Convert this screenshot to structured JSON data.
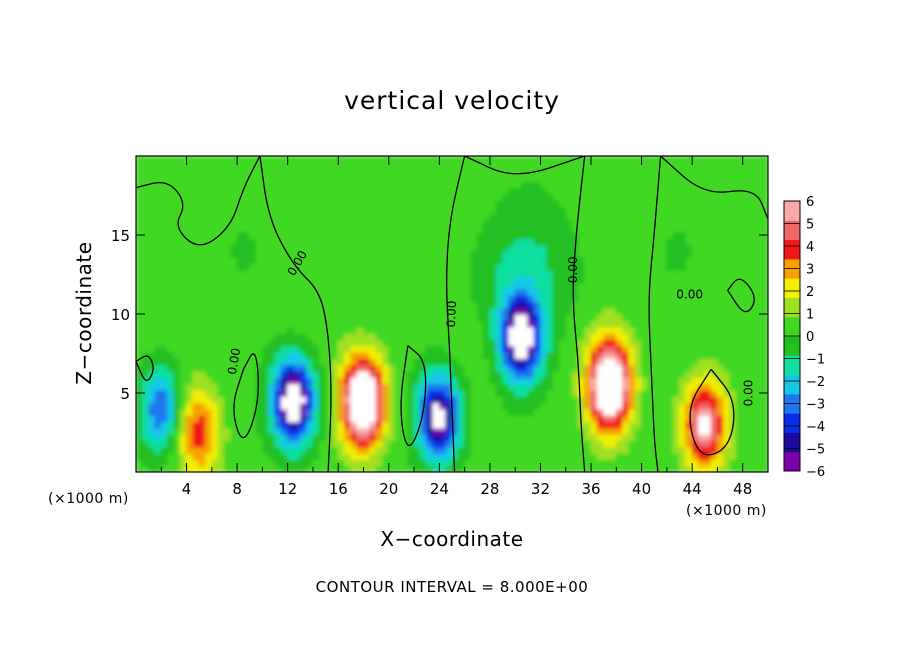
{
  "chart_data": {
    "type": "heatmap",
    "title": "vertical velocity",
    "xlabel": "X−coordinate",
    "ylabel": "Z−coordinate",
    "x_unit": "(×1000 m)",
    "y_unit": "(×1000 m)",
    "xlim": [
      0,
      50
    ],
    "ylim": [
      0,
      20
    ],
    "x_ticks": [
      4,
      8,
      12,
      16,
      20,
      24,
      28,
      32,
      36,
      40,
      44,
      48
    ],
    "y_ticks": [
      5,
      10,
      15
    ],
    "colorbar": {
      "ticks": [
        6,
        5,
        4,
        3,
        2,
        1,
        0,
        -1,
        -2,
        -3,
        -4,
        -5,
        -6
      ],
      "tick_labels": [
        "6",
        "5",
        "4",
        "3",
        "2",
        "1",
        "0",
        "−1",
        "−2",
        "−3",
        "−4",
        "−5",
        "−6"
      ],
      "vmin": -6,
      "vmax": 6,
      "colors": [
        "#7a00a8",
        "#1a0aa0",
        "#0a2ee8",
        "#1e78f0",
        "#14c8e8",
        "#10e0a0",
        "#20c020",
        "#40d820",
        "#a0e020",
        "#f0f000",
        "#f8a000",
        "#f01818",
        "#f06868",
        "#f8a8a8"
      ]
    },
    "contour_interval_text": "CONTOUR INTERVAL = 8.000E+00",
    "contour_labels": [
      "0.00",
      "0.00",
      "0.00",
      "0.00",
      "0.00",
      "0.00"
    ],
    "features": [
      {
        "kind": "updraft",
        "x": 18.0,
        "z": 4.5,
        "w": 9
      },
      {
        "kind": "updraft",
        "x": 37.5,
        "z": 5.5,
        "w": 9
      },
      {
        "kind": "updraft",
        "x": 45.0,
        "z": 3.0,
        "w": 6
      },
      {
        "kind": "updraft",
        "x": 5.0,
        "z": 2.5,
        "w": 4
      },
      {
        "kind": "downdraft",
        "x": 12.5,
        "z": 4.5,
        "w": -8
      },
      {
        "kind": "downdraft",
        "x": 24.0,
        "z": 3.5,
        "w": -7
      },
      {
        "kind": "downdraft",
        "x": 30.5,
        "z": 8.5,
        "w": -8
      },
      {
        "kind": "downdraft",
        "x": 2.0,
        "z": 4.0,
        "w": -4
      }
    ]
  }
}
